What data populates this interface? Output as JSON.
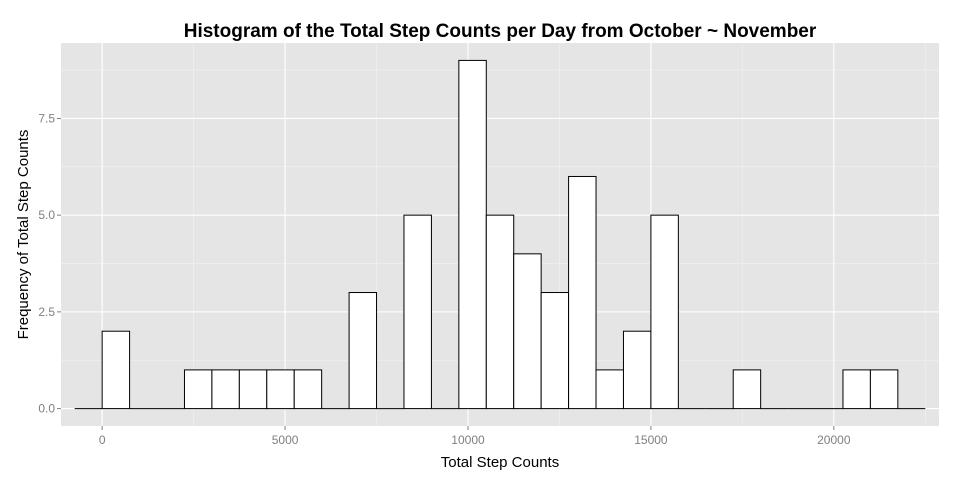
{
  "chart_data": {
    "type": "bar",
    "title": "Histogram of the Total Step Counts per Day from October ~ November",
    "xlabel": "Total Step Counts",
    "ylabel": "Frequency of Total Step Counts",
    "bin_width": 750,
    "xlim": [
      -1125,
      22875
    ],
    "ylim": [
      -0.45,
      9.45
    ],
    "x_ticks": [
      0,
      5000,
      10000,
      15000,
      20000
    ],
    "x_tick_labels": [
      "0",
      "5000",
      "10000",
      "15000",
      "20000"
    ],
    "y_ticks": [
      0,
      2.5,
      5,
      7.5
    ],
    "y_tick_labels": [
      "0.0",
      "2.5",
      "5.0",
      "7.5"
    ],
    "bin_centers": [
      -375,
      375,
      1125,
      1875,
      2625,
      3375,
      4125,
      4875,
      5625,
      6375,
      7125,
      7875,
      8625,
      9375,
      10125,
      10875,
      11625,
      12375,
      13125,
      13875,
      14625,
      15375,
      16125,
      16875,
      17625,
      18375,
      19125,
      19875,
      20625,
      21375,
      22125
    ],
    "values": [
      0,
      2,
      0,
      0,
      1,
      1,
      1,
      1,
      1,
      0,
      3,
      0,
      5,
      0,
      9,
      5,
      4,
      3,
      6,
      1,
      2,
      5,
      0,
      0,
      1,
      0,
      0,
      0,
      1,
      1,
      0
    ],
    "grid": true,
    "background": "#e5e5e5",
    "bar_fill": "#ffffff",
    "bar_stroke": "#000000"
  }
}
